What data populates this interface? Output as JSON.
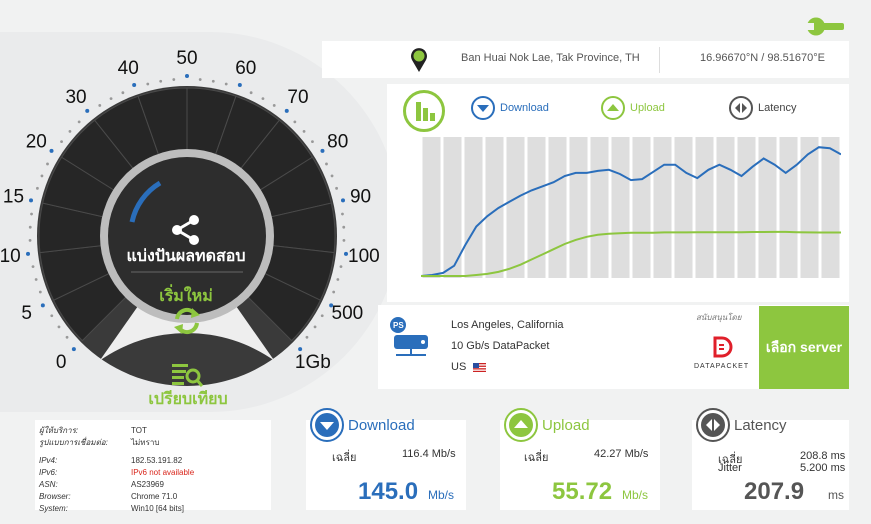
{
  "gauge": {
    "ticks": [
      "0",
      "5",
      "10",
      "15",
      "20",
      "30",
      "40",
      "50",
      "60",
      "70",
      "80",
      "90",
      "100",
      "500",
      "1Gb"
    ],
    "share_label": "แบ่งปันผลทดสอบ",
    "restart_label": "เริ่มใหม่",
    "compare_label": "เปรียบเทียบ"
  },
  "location": {
    "place": "Ban Huai Nok Lae, Tak Province, TH",
    "coords": "16.96670°N / 98.51670°E"
  },
  "chart_legend": {
    "download": "Download",
    "upload": "Upload",
    "latency": "Latency"
  },
  "chart_data": {
    "type": "line",
    "bars": 20,
    "series": [
      {
        "name": "Download",
        "color": "#2a6ebb",
        "values": [
          0,
          1,
          3,
          10,
          30,
          48,
          58,
          66,
          72,
          78,
          83,
          87,
          91,
          97,
          100,
          100,
          102,
          103,
          99,
          93,
          94,
          101,
          108,
          108,
          100,
          95,
          103,
          108,
          103,
          97,
          106,
          114,
          108,
          100,
          108,
          118,
          125,
          124,
          118
        ]
      },
      {
        "name": "Upload",
        "color": "#8dc63f",
        "values": [
          0,
          0,
          0,
          0,
          0,
          1,
          2,
          4,
          7,
          11,
          16,
          21,
          26,
          31,
          35,
          38,
          40,
          41,
          41.5,
          42,
          42,
          42,
          42.3,
          42.3,
          42.3,
          42.5,
          42.5,
          42.5,
          42.5,
          42.5,
          42.7,
          42.7,
          42.8,
          42.8,
          42.5,
          42.3,
          42.2,
          42.2,
          42.2
        ]
      }
    ]
  },
  "server": {
    "city": "Los Angeles, California",
    "isp": "10 Gb/s DataPacket",
    "country": "US",
    "sponsor_label": "สนับสนุนโดย",
    "sponsor_name": "DATAPACKET",
    "select_label": "เลือก server"
  },
  "info": {
    "rows": [
      {
        "k": "ผู้ให้บริการ:",
        "v": "TOT"
      },
      {
        "k": "รูปแบบการเชื่อมต่อ:",
        "v": "ไม่ทราบ"
      },
      {
        "k": "IPv4:",
        "v": "182.53.191.82"
      },
      {
        "k": "IPv6:",
        "v": "IPv6 not available"
      },
      {
        "k": "ASN:",
        "v": "AS23969"
      },
      {
        "k": "Browser:",
        "v": "Chrome 71.0"
      },
      {
        "k": "System:",
        "v": "Win10 [64 bits]"
      }
    ]
  },
  "download": {
    "title": "Download",
    "avg_label": "เฉลี่ย",
    "avg_value": "116.4 Mb/s",
    "value": "145.0",
    "unit": "Mb/s",
    "color": "#2a6ebb"
  },
  "upload": {
    "title": "Upload",
    "avg_label": "เฉลี่ย",
    "avg_value": "42.27 Mb/s",
    "value": "55.72",
    "unit": "Mb/s",
    "color": "#8dc63f"
  },
  "latency": {
    "title": "Latency",
    "avg_label": "เฉลี่ย",
    "avg_value": "208.8 ms",
    "jitter_label": "Jitter",
    "jitter_value": "5.200 ms",
    "value": "207.9",
    "unit": "ms",
    "color": "#555555"
  }
}
